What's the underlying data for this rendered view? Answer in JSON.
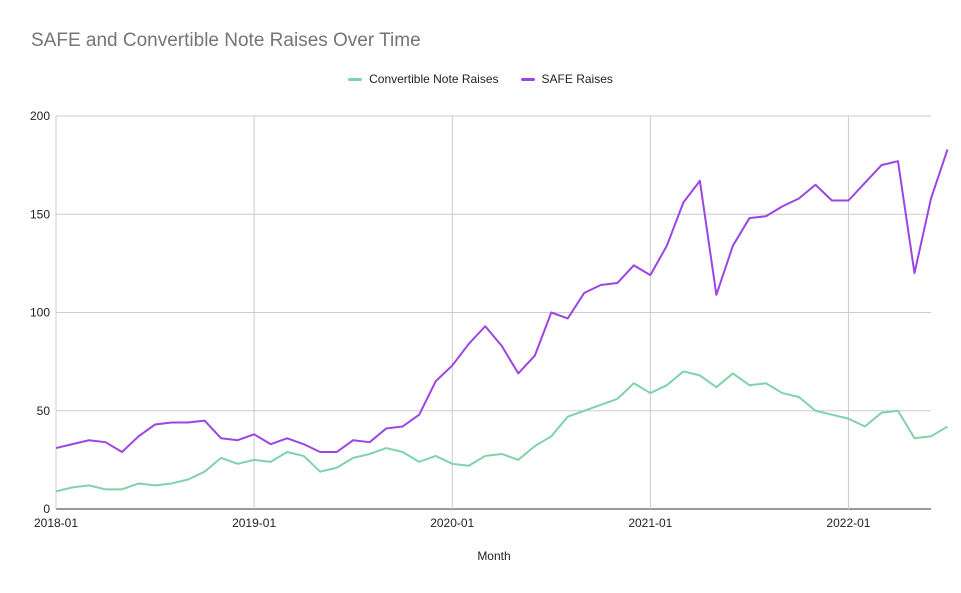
{
  "chart_data": {
    "type": "line",
    "title": "SAFE and Convertible Note Raises Over Time",
    "xlabel": "Month",
    "ylabel": "",
    "ylim": [
      0,
      200
    ],
    "y_ticks": [
      "0",
      "50",
      "100",
      "150",
      "200"
    ],
    "x_ticks": [
      "2018-01",
      "2019-01",
      "2020-01",
      "2021-01",
      "2022-01"
    ],
    "x_start": "2018-01",
    "x_end": "2022-06",
    "grid": true,
    "legend_position": "top",
    "series": [
      {
        "name": "Convertible Note Raises",
        "color": "#7ed3a8",
        "values": [
          9,
          11,
          12,
          10,
          10,
          13,
          12,
          13,
          15,
          19,
          26,
          23,
          25,
          24,
          29,
          27,
          19,
          21,
          26,
          28,
          31,
          29,
          24,
          27,
          23,
          22,
          27,
          28,
          25,
          32,
          37,
          47,
          50,
          53,
          56,
          64,
          59,
          63,
          70,
          68,
          62,
          69,
          63,
          64,
          59,
          57,
          50,
          48,
          46,
          42,
          49,
          50,
          36,
          37,
          42
        ]
      },
      {
        "name": "SAFE Raises",
        "color": "#9c45e3",
        "values": [
          31,
          33,
          35,
          34,
          29,
          37,
          43,
          44,
          44,
          45,
          36,
          35,
          38,
          33,
          36,
          33,
          29,
          29,
          35,
          34,
          41,
          42,
          48,
          65,
          73,
          84,
          93,
          83,
          69,
          78,
          100,
          97,
          110,
          114,
          115,
          124,
          119,
          134,
          156,
          167,
          109,
          134,
          148,
          149,
          154,
          158,
          165,
          157,
          157,
          166,
          175,
          177,
          120,
          158,
          183
        ]
      }
    ]
  }
}
